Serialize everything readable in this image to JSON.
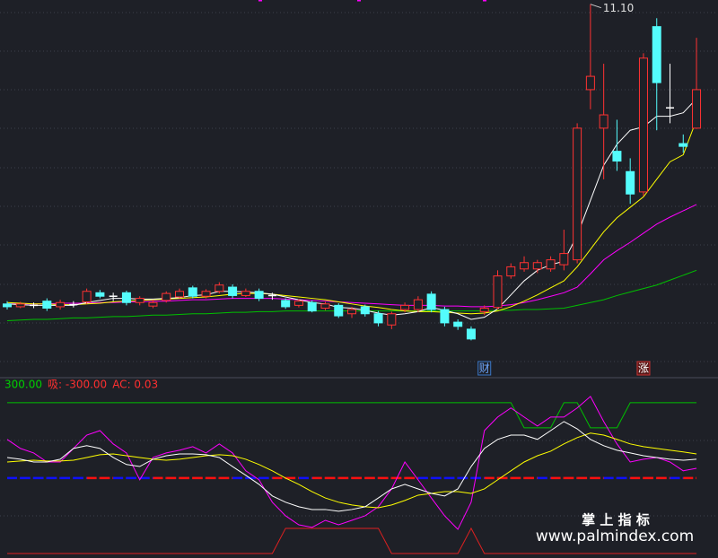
{
  "chart_data": [
    {
      "type": "candlestick",
      "categories": [
        null,
        null,
        null,
        null,
        null,
        null,
        null,
        null,
        null,
        null,
        null,
        null,
        null,
        null,
        null,
        null,
        null,
        null,
        null,
        null,
        null,
        null,
        null,
        null,
        null,
        null,
        null,
        null,
        null,
        null,
        null,
        null,
        null,
        null,
        null,
        null,
        "财",
        null,
        null,
        null,
        null,
        null,
        null,
        null,
        null,
        null,
        null,
        null,
        "涨",
        null,
        null,
        null,
        null
      ],
      "open": [
        6.82,
        6.78,
        6.8,
        6.86,
        6.78,
        6.81,
        6.85,
        6.98,
        6.93,
        6.98,
        6.84,
        6.79,
        6.87,
        6.92,
        7.05,
        6.93,
        7.0,
        7.06,
        6.94,
        7.0,
        6.94,
        6.87,
        6.8,
        6.84,
        6.76,
        6.8,
        6.68,
        6.78,
        6.68,
        6.52,
        6.74,
        6.74,
        6.96,
        6.74,
        6.56,
        6.46,
        6.71,
        6.77,
        7.22,
        7.32,
        7.32,
        7.32,
        7.38,
        7.45,
        9.88,
        9.33,
        9.0,
        8.71,
        8.42,
        10.78,
        9.62,
        9.11,
        9.33
      ],
      "high": [
        6.86,
        6.85,
        6.84,
        6.9,
        6.88,
        6.86,
        7.04,
        7.02,
        6.98,
        7.01,
        6.93,
        6.88,
        7.0,
        7.04,
        7.08,
        7.03,
        7.13,
        7.1,
        7.04,
        7.04,
        6.98,
        6.9,
        6.89,
        6.87,
        6.85,
        6.83,
        6.78,
        6.81,
        6.72,
        6.71,
        6.84,
        6.93,
        7.0,
        6.78,
        6.6,
        6.5,
        6.8,
        7.3,
        7.4,
        7.5,
        7.45,
        7.5,
        7.88,
        9.4,
        11.1,
        10.25,
        9.45,
        8.9,
        10.4,
        10.9,
        10.25,
        9.24,
        10.62
      ],
      "low": [
        6.74,
        6.76,
        6.76,
        6.72,
        6.74,
        6.77,
        6.82,
        6.9,
        6.86,
        6.8,
        6.8,
        6.76,
        6.84,
        6.9,
        6.9,
        6.9,
        6.97,
        6.9,
        6.92,
        6.86,
        6.88,
        6.75,
        6.77,
        6.7,
        6.73,
        6.62,
        6.62,
        6.64,
        6.5,
        6.46,
        6.7,
        6.7,
        6.7,
        6.5,
        6.45,
        6.3,
        6.66,
        6.74,
        7.18,
        7.28,
        7.26,
        7.28,
        7.3,
        7.4,
        9.6,
        8.6,
        8.72,
        8.25,
        8.36,
        9.3,
        9.4,
        8.98,
        9.32
      ],
      "close": [
        6.78,
        6.82,
        6.8,
        6.76,
        6.84,
        6.81,
        7.0,
        6.93,
        6.93,
        6.84,
        6.9,
        6.84,
        6.97,
        7.0,
        6.93,
        7.0,
        7.09,
        6.94,
        7.0,
        6.9,
        6.94,
        6.78,
        6.86,
        6.72,
        6.82,
        6.65,
        6.74,
        6.68,
        6.55,
        6.68,
        6.8,
        6.88,
        6.74,
        6.55,
        6.5,
        6.32,
        6.76,
        7.22,
        7.35,
        7.41,
        7.41,
        7.45,
        7.54,
        9.33,
        10.07,
        9.52,
        8.86,
        8.39,
        10.33,
        9.98,
        9.62,
        9.07,
        9.88
      ],
      "up_color": "#ff3232",
      "down_color": "#54fcfc",
      "flat_color": "#ffffff",
      "series": [
        {
          "color": "#00c000",
          "values": [
            6.58,
            6.59,
            6.6,
            6.6,
            6.61,
            6.62,
            6.62,
            6.63,
            6.64,
            6.64,
            6.65,
            6.66,
            6.66,
            6.67,
            6.68,
            6.68,
            6.69,
            6.7,
            6.7,
            6.71,
            6.71,
            6.72,
            6.72,
            6.72,
            6.72,
            6.72,
            6.72,
            6.72,
            6.72,
            6.72,
            6.72,
            6.72,
            6.72,
            6.72,
            6.72,
            6.72,
            6.72,
            6.73,
            6.73,
            6.74,
            6.74,
            6.75,
            6.76,
            6.8,
            6.84,
            6.88,
            6.94,
            6.99,
            7.04,
            7.09,
            7.16,
            7.23,
            7.3
          ]
        },
        {
          "color": "#ff00ff",
          "values": [
            6.82,
            6.82,
            6.82,
            6.82,
            6.83,
            6.83,
            6.83,
            6.84,
            6.84,
            6.85,
            6.85,
            6.86,
            6.86,
            6.87,
            6.88,
            6.88,
            6.89,
            6.9,
            6.9,
            6.9,
            6.9,
            6.89,
            6.88,
            6.87,
            6.86,
            6.85,
            6.84,
            6.83,
            6.82,
            6.81,
            6.8,
            6.8,
            6.8,
            6.79,
            6.79,
            6.78,
            6.78,
            6.79,
            6.81,
            6.84,
            6.88,
            6.93,
            6.98,
            7.06,
            7.25,
            7.45,
            7.58,
            7.7,
            7.83,
            7.96,
            8.06,
            8.15,
            8.24
          ]
        },
        {
          "color": "#ffff00",
          "values": [
            6.84,
            6.83,
            6.82,
            6.82,
            6.81,
            6.81,
            6.82,
            6.83,
            6.85,
            6.86,
            6.87,
            6.88,
            6.89,
            6.9,
            6.91,
            6.92,
            6.94,
            6.96,
            6.97,
            6.97,
            6.96,
            6.94,
            6.92,
            6.9,
            6.88,
            6.85,
            6.82,
            6.79,
            6.77,
            6.74,
            6.72,
            6.71,
            6.71,
            6.7,
            6.69,
            6.68,
            6.69,
            6.72,
            6.78,
            6.86,
            6.95,
            7.05,
            7.15,
            7.35,
            7.6,
            7.85,
            8.05,
            8.2,
            8.35,
            8.6,
            8.85,
            8.95,
            9.45
          ]
        },
        {
          "color": "#ffffff",
          "values": [
            6.82,
            6.81,
            6.8,
            6.8,
            6.8,
            6.8,
            6.84,
            6.87,
            6.9,
            6.9,
            6.89,
            6.89,
            6.9,
            6.91,
            6.94,
            6.95,
            7.0,
            7.0,
            6.99,
            6.98,
            6.96,
            6.92,
            6.88,
            6.84,
            6.82,
            6.77,
            6.76,
            6.73,
            6.69,
            6.66,
            6.68,
            6.71,
            6.77,
            6.73,
            6.68,
            6.6,
            6.63,
            6.75,
            6.95,
            7.15,
            7.3,
            7.38,
            7.43,
            7.8,
            8.3,
            8.8,
            9.1,
            9.3,
            9.35,
            9.5,
            9.5,
            9.55,
            9.75
          ]
        }
      ],
      "annotations": [
        {
          "label": "11.10",
          "value": 11.1
        }
      ],
      "ylim": [
        5.78,
        11.16
      ],
      "grid": true
    },
    {
      "type": "line",
      "header": [
        {
          "text": "300.00",
          "color": "#00d000"
        },
        {
          "text": "吸: -300.00",
          "color": "#ff3030"
        },
        {
          "text": "AC: 0.03",
          "color": "#ff3030"
        }
      ],
      "series": [
        {
          "color": "#00c000",
          "values": [
            300,
            300,
            300,
            300,
            300,
            300,
            300,
            300,
            300,
            300,
            300,
            300,
            300,
            300,
            300,
            300,
            300,
            300,
            300,
            300,
            300,
            300,
            300,
            300,
            300,
            300,
            300,
            300,
            300,
            300,
            300,
            300,
            300,
            300,
            300,
            300,
            300,
            300,
            300,
            200,
            200,
            200,
            300,
            300,
            200,
            200,
            200,
            300,
            300,
            300,
            300,
            300,
            300
          ]
        },
        {
          "color": "#e02020",
          "values": [
            -300,
            -300,
            -300,
            -300,
            -300,
            -300,
            -300,
            -300,
            -300,
            -300,
            -300,
            -300,
            -300,
            -300,
            -300,
            -300,
            -300,
            -300,
            -300,
            -300,
            -300,
            -200,
            -200,
            -200,
            -200,
            -200,
            -200,
            -200,
            -200,
            -300,
            -300,
            -300,
            -300,
            -300,
            -300,
            -200,
            -300,
            -300,
            -300,
            -300,
            -300,
            -300,
            -300,
            -300,
            -300,
            -300,
            -300,
            -300,
            -300,
            -300,
            -300,
            -300,
            -300
          ]
        },
        {
          "color": "#ff00ff",
          "values": [
            154,
            118,
            100,
            64,
            64,
            118,
            171,
            189,
            136,
            100,
            -7,
            82,
            100,
            111,
            125,
            100,
            136,
            100,
            29,
            -7,
            -96,
            -150,
            -186,
            -196,
            -168,
            -186,
            -168,
            -150,
            -114,
            -43,
            64,
            -7,
            -79,
            -150,
            -204,
            -96,
            189,
            243,
            279,
            243,
            207,
            243,
            243,
            279,
            325,
            225,
            136,
            64,
            75,
            82,
            64,
            29,
            39
          ]
        },
        {
          "color": "#ffff00",
          "values": [
            64,
            68,
            71,
            68,
            68,
            71,
            82,
            93,
            96,
            89,
            82,
            75,
            71,
            75,
            82,
            89,
            93,
            89,
            75,
            54,
            29,
            0,
            -25,
            -54,
            -79,
            -96,
            -107,
            -114,
            -118,
            -107,
            -89,
            -68,
            -61,
            -54,
            -54,
            -61,
            -43,
            -7,
            29,
            64,
            89,
            107,
            136,
            161,
            179,
            171,
            154,
            136,
            125,
            118,
            111,
            104,
            96
          ]
        },
        {
          "color": "#ffffff",
          "values": [
            82,
            75,
            64,
            64,
            75,
            118,
            129,
            118,
            82,
            54,
            46,
            75,
            89,
            96,
            96,
            93,
            82,
            46,
            11,
            -25,
            -71,
            -96,
            -114,
            -125,
            -125,
            -132,
            -125,
            -114,
            -79,
            -43,
            -25,
            -43,
            -61,
            -71,
            -43,
            46,
            118,
            154,
            171,
            171,
            154,
            189,
            225,
            196,
            154,
            129,
            111,
            100,
            89,
            82,
            75,
            71,
            75
          ]
        }
      ],
      "baseline": {
        "values": [
          0,
          0,
          0,
          0,
          0,
          0,
          0,
          0,
          0,
          0,
          0,
          0,
          0,
          0,
          0,
          0,
          0,
          0,
          0,
          0,
          0,
          0,
          0,
          0,
          0,
          0,
          0,
          0,
          0,
          0,
          0,
          0,
          0,
          0,
          0,
          0,
          0,
          0,
          0,
          0,
          0,
          0,
          0,
          0,
          0,
          0,
          0,
          0,
          0,
          0,
          0,
          0,
          0
        ],
        "colors": [
          "#1010ff",
          "#1010ff",
          "#1010ff",
          "#1010ff",
          "#1010ff",
          "#1010ff",
          "#ff1010",
          "#ff1010",
          "#1010ff",
          "#1010ff",
          "#1010ff",
          "#ff1010",
          "#ff1010",
          "#ff1010",
          "#ff1010",
          "#ff1010",
          "#ff1010",
          "#1010ff",
          "#1010ff",
          "#1010ff",
          "#ff1010",
          "#ff1010",
          "#1010ff",
          "#ff1010",
          "#ff1010",
          "#ff1010",
          "#ff1010",
          "#ff1010",
          "#ff1010",
          "#ff1010",
          "#ff1010",
          "#1010ff",
          "#1010ff",
          "#1010ff",
          "#1010ff",
          "#1010ff",
          "#ff1010",
          "#ff1010",
          "#ff1010",
          "#ff1010",
          "#1010ff",
          "#ff1010",
          "#ff1010",
          "#ff1010",
          "#ff1010",
          "#1010ff",
          "#1010ff",
          "#ff1010",
          "#ff1010",
          "#ff1010",
          "#1010ff",
          "#ff1010",
          "#ff1010"
        ]
      },
      "ylim": [
        -318,
        396
      ],
      "grid": true
    }
  ],
  "watermark": {
    "title": "掌 上 指 标",
    "url": "www.palmindex.com"
  }
}
